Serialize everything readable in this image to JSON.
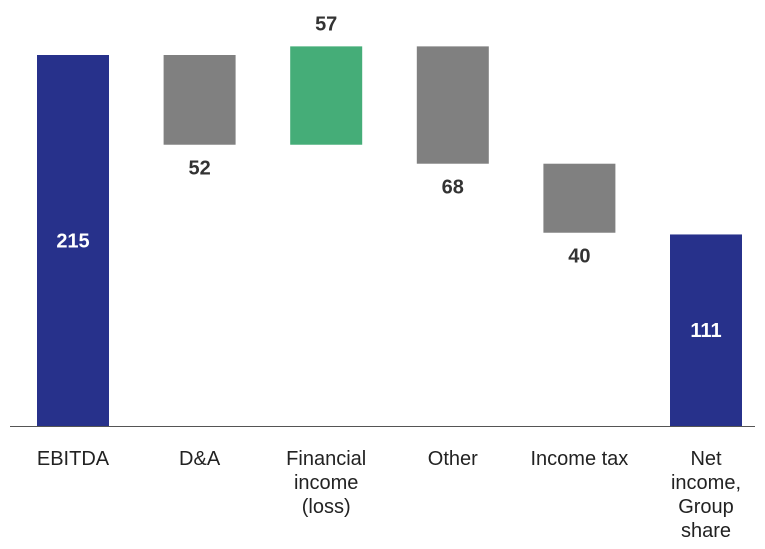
{
  "chart_data": {
    "type": "bar",
    "subtype": "waterfall",
    "title": "",
    "xlabel": "",
    "ylabel": "",
    "grid": false,
    "legend": "none",
    "ylim": [
      0,
      215
    ],
    "categories": [
      "EBITDA",
      "D&A",
      "Financial income (loss)",
      "Other",
      "Income tax",
      "Net income, Group share"
    ],
    "category_lines": [
      [
        "EBITDA"
      ],
      [
        "D&A"
      ],
      [
        "Financial",
        "income",
        "(loss)"
      ],
      [
        "Other"
      ],
      [
        "Income tax"
      ],
      [
        "Net",
        "income,",
        "Group",
        "share"
      ]
    ],
    "bars": [
      {
        "label": "215",
        "kind": "total",
        "start": 0,
        "end": 215
      },
      {
        "label": "52",
        "kind": "decrease",
        "start": 215,
        "end": 163
      },
      {
        "label": "57",
        "kind": "increase",
        "start": 163,
        "end": 220
      },
      {
        "label": "68",
        "kind": "decrease",
        "start": 220,
        "end": 152
      },
      {
        "label": "40",
        "kind": "decrease",
        "start": 152,
        "end": 112
      },
      {
        "label": "111",
        "kind": "total",
        "start": 0,
        "end": 111
      }
    ],
    "colors": {
      "total": "#27318b",
      "decrease": "#808080",
      "increase": "#45ad78",
      "label_on_bar": "#ffffff",
      "label_off_bar": "#333333",
      "axis": "#555555"
    }
  }
}
